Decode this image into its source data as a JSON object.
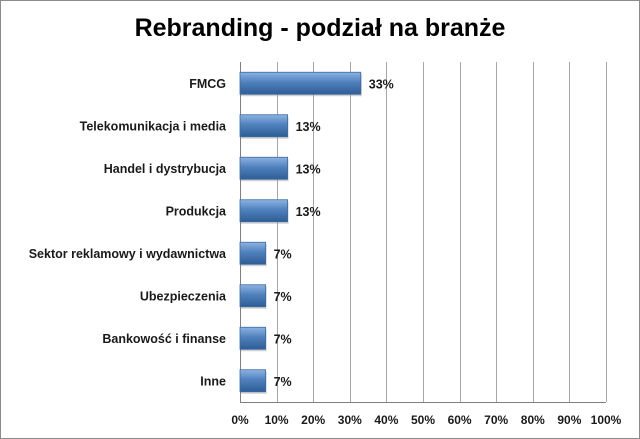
{
  "chart_data": {
    "type": "bar",
    "orientation": "horizontal",
    "title": "Rebranding - podział na branże",
    "categories": [
      "FMCG",
      "Telekomunikacja i media",
      "Handel i dystrybucja",
      "Produkcja",
      "Sektor reklamowy i wydawnictwa",
      "Ubezpieczenia",
      "Bankowość i finanse",
      "Inne"
    ],
    "values": [
      33,
      13,
      13,
      13,
      7,
      7,
      7,
      7
    ],
    "data_labels": [
      "33%",
      "13%",
      "13%",
      "13%",
      "7%",
      "7%",
      "7%",
      "7%"
    ],
    "xlim": [
      0,
      100
    ],
    "x_ticks": [
      "0%",
      "10%",
      "20%",
      "30%",
      "40%",
      "50%",
      "60%",
      "70%",
      "80%",
      "90%",
      "100%"
    ],
    "grid": "vertical",
    "bar_color": "#4f81bd"
  }
}
